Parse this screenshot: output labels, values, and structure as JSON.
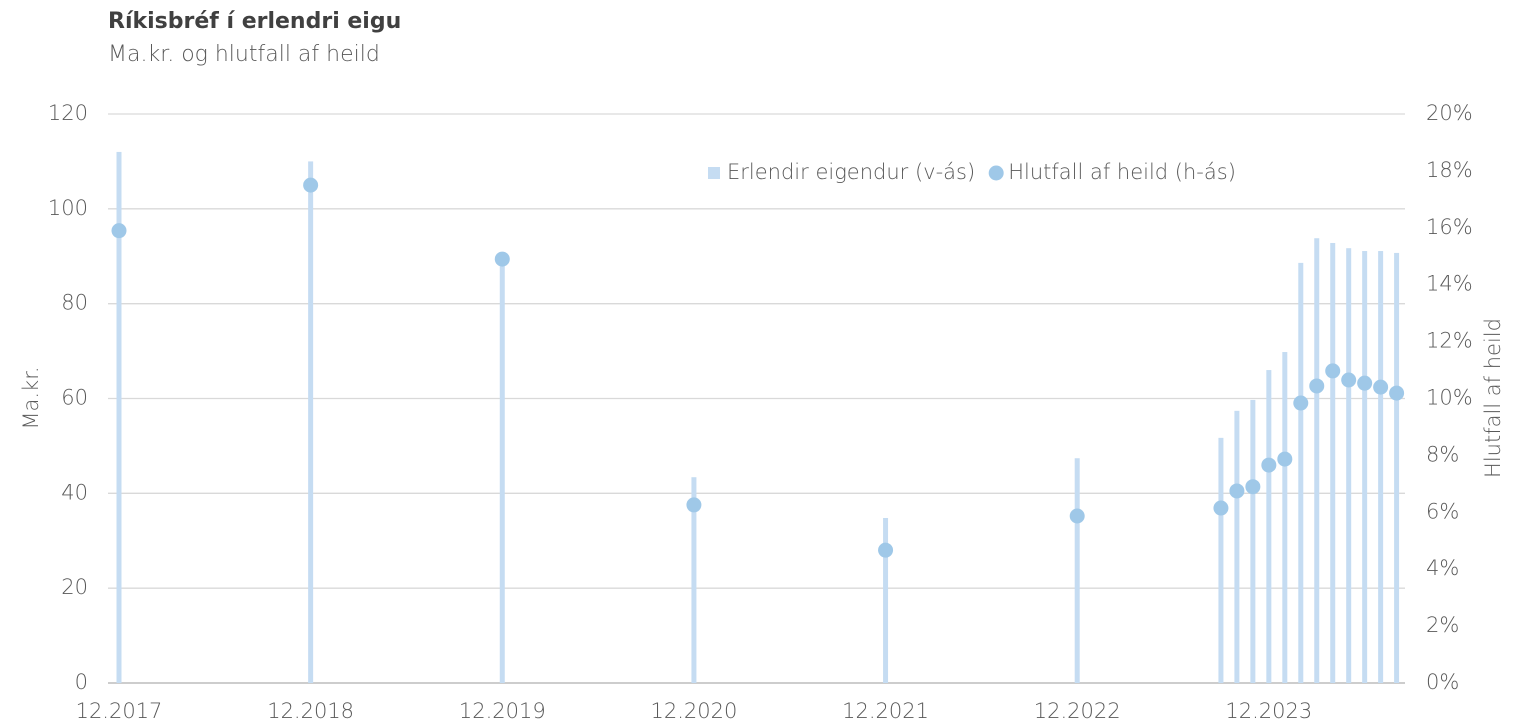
{
  "chart_data": {
    "type": "bar",
    "title": "Ríkisbréf í erlendri eigu",
    "subtitle": "Ma.kr. og hlutfall af heild",
    "ylabel": "Ma.kr.",
    "y2label": "Hlutfall af heild",
    "x": [
      "12.2017",
      "12.2018",
      "12.2019",
      "12.2020",
      "12.2021",
      "12.2022",
      "9.2023",
      "10.2023",
      "11.2023",
      "12.2023",
      "1.2024",
      "2.2024",
      "3.2024",
      "4.2024",
      "5.2024",
      "6.2024",
      "7.2024",
      "8.2024"
    ],
    "xticks": [
      "12.2017",
      "12.2018",
      "12.2019",
      "12.2020",
      "12.2021",
      "12.2022",
      "12.2023"
    ],
    "series": [
      {
        "name": "Erlendir eigendur (v-ás)",
        "type": "bar",
        "axis": "y",
        "color": "#c5dcf2",
        "values": [
          112,
          110,
          90,
          43.4,
          34.8,
          47.4,
          51.7,
          57.4,
          59.7,
          66,
          69.8,
          88.6,
          93.8,
          92.8,
          91.7,
          91.1,
          91.1,
          90.7
        ]
      },
      {
        "name": "Hlutfall af heild (h-ás)",
        "type": "scatter",
        "axis": "y2",
        "color": "#9fc8e8",
        "values": [
          15.9,
          17.5,
          14.9,
          6.26,
          4.67,
          5.87,
          6.15,
          6.75,
          6.9,
          7.66,
          7.87,
          9.84,
          10.44,
          10.97,
          10.65,
          10.54,
          10.4,
          10.19
        ]
      }
    ],
    "ylim": [
      0,
      120
    ],
    "yticks": [
      0,
      20,
      40,
      60,
      80,
      100,
      120
    ],
    "y2lim": [
      0,
      20
    ],
    "y2ticks": [
      {
        "value": 0,
        "label": "0%"
      },
      {
        "value": 2,
        "label": "2%"
      },
      {
        "value": 4,
        "label": "4%"
      },
      {
        "value": 6,
        "label": "6%"
      },
      {
        "value": 8,
        "label": "8%"
      },
      {
        "value": 10,
        "label": "10%"
      },
      {
        "value": 12,
        "label": "12%"
      },
      {
        "value": 14,
        "label": "14%"
      },
      {
        "value": 16,
        "label": "16%"
      },
      {
        "value": 18,
        "label": "18%"
      },
      {
        "value": 20,
        "label": "20%"
      }
    ],
    "grid": true,
    "legend": "top-right"
  }
}
